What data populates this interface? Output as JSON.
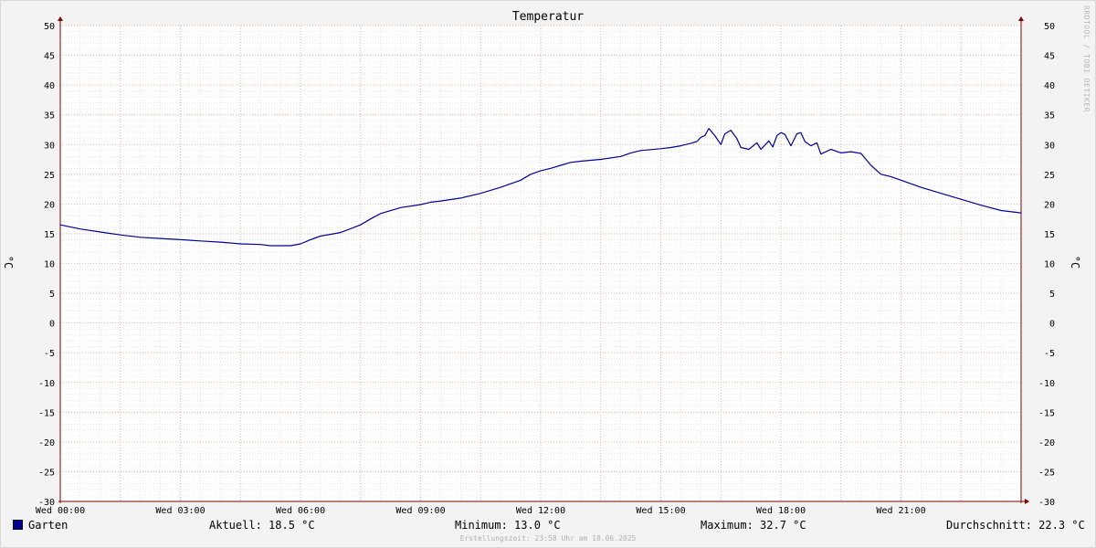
{
  "title": "Temperatur",
  "unit_label": "°C",
  "watermark": "RRDTOOL / TOBI OETIKER",
  "legend": {
    "series_name": "Garten",
    "current": "Aktuell: 18.5 °C",
    "minimum": "Minimum: 13.0 °C",
    "maximum": "Maximum: 32.7 °C",
    "average": "Durchschnitt: 22.3 °C"
  },
  "footer": "Erstellungszeit: 23:58 Uhr am 18.06.2025",
  "colors": {
    "series": "#000099",
    "major_grid": "#e8a0a0",
    "minor_grid": "#d8d8d8",
    "axis": "#800000",
    "plot_bg": "#ffffff"
  },
  "chart_data": {
    "type": "line",
    "title": "Temperatur",
    "ylabel": "°C",
    "ylim": [
      -30,
      50
    ],
    "xlim": [
      0,
      24
    ],
    "y_ticks": [
      50,
      45,
      40,
      35,
      30,
      25,
      20,
      15,
      10,
      5,
      0,
      -5,
      -10,
      -15,
      -20,
      -25,
      -30
    ],
    "x_ticks": [
      {
        "hour": 0,
        "label": "Wed 00:00"
      },
      {
        "hour": 3,
        "label": "Wed 03:00"
      },
      {
        "hour": 6,
        "label": "Wed 06:00"
      },
      {
        "hour": 9,
        "label": "Wed 09:00"
      },
      {
        "hour": 12,
        "label": "Wed 12:00"
      },
      {
        "hour": 15,
        "label": "Wed 15:00"
      },
      {
        "hour": 18,
        "label": "Wed 18:00"
      },
      {
        "hour": 21,
        "label": "Wed 21:00"
      }
    ],
    "grid": true,
    "legend_position": "bottom",
    "series": [
      {
        "name": "Garten",
        "x": [
          0,
          0.5,
          1.0,
          1.5,
          2.0,
          2.5,
          3.0,
          3.5,
          4.0,
          4.5,
          5.0,
          5.25,
          5.5,
          5.75,
          6.0,
          6.25,
          6.5,
          7.0,
          7.5,
          7.75,
          8.0,
          8.5,
          9.0,
          9.25,
          9.5,
          10.0,
          10.5,
          11.0,
          11.25,
          11.5,
          11.75,
          12.0,
          12.25,
          12.5,
          12.75,
          13.0,
          13.5,
          14.0,
          14.25,
          14.5,
          15.0,
          15.25,
          15.5,
          15.75,
          15.9,
          16.0,
          16.1,
          16.2,
          16.35,
          16.5,
          16.6,
          16.75,
          16.9,
          17.0,
          17.2,
          17.4,
          17.5,
          17.7,
          17.8,
          17.9,
          18.0,
          18.1,
          18.25,
          18.4,
          18.5,
          18.6,
          18.75,
          18.9,
          19.0,
          19.25,
          19.5,
          19.75,
          20.0,
          20.25,
          20.5,
          20.75,
          21.0,
          21.5,
          22.0,
          22.5,
          23.0,
          23.5,
          24.0
        ],
        "y": [
          16.5,
          15.8,
          15.3,
          14.8,
          14.4,
          14.2,
          14.0,
          13.8,
          13.6,
          13.3,
          13.2,
          13.0,
          13.0,
          13.0,
          13.3,
          14.0,
          14.6,
          15.2,
          16.5,
          17.5,
          18.4,
          19.4,
          19.9,
          20.3,
          20.5,
          21.0,
          21.8,
          22.8,
          23.4,
          24.0,
          25.0,
          25.6,
          26.0,
          26.5,
          27.0,
          27.2,
          27.5,
          28.0,
          28.6,
          29.0,
          29.3,
          29.5,
          29.8,
          30.2,
          30.5,
          31.2,
          31.5,
          32.7,
          31.5,
          30.0,
          31.8,
          32.4,
          31.0,
          29.5,
          29.2,
          30.3,
          29.2,
          30.6,
          29.6,
          31.5,
          32.0,
          31.7,
          29.8,
          31.8,
          32.0,
          30.5,
          29.8,
          30.3,
          28.4,
          29.2,
          28.6,
          28.8,
          28.5,
          26.5,
          25.0,
          24.6,
          24.0,
          22.8,
          21.8,
          20.8,
          19.8,
          18.9,
          18.5
        ]
      }
    ]
  }
}
